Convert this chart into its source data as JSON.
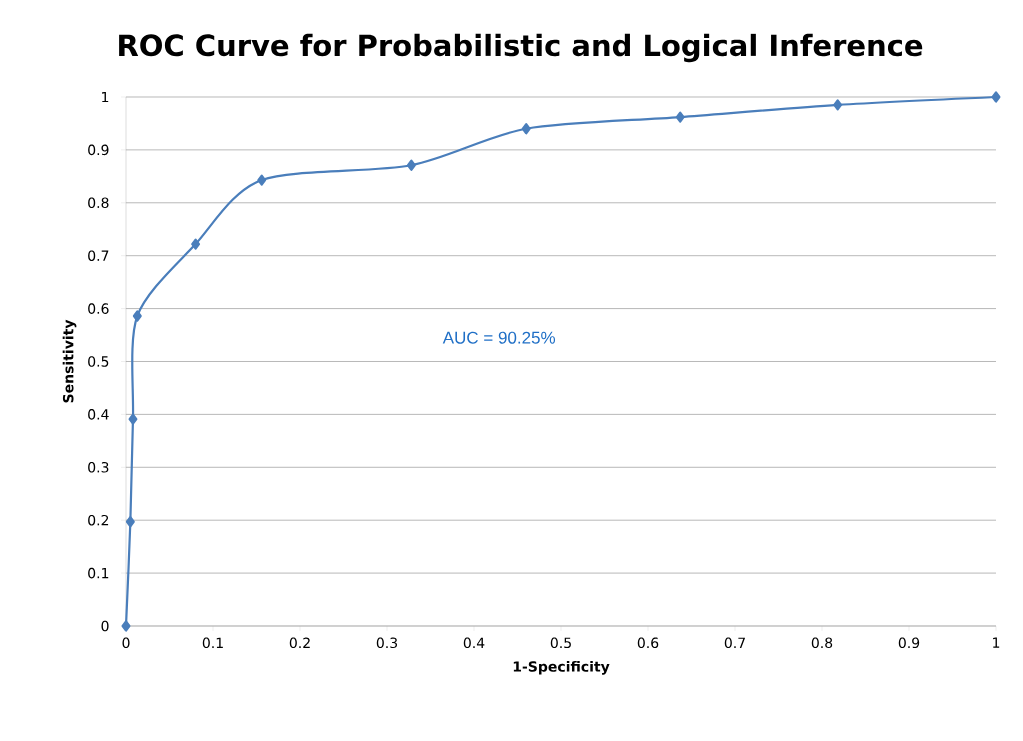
{
  "chart_data": {
    "type": "line",
    "title": "ROC Curve for Probabilistic and Logical Inference",
    "xlabel": "1-Specificity",
    "ylabel": "Sensitivity",
    "annotations": [
      "AUC = 90.25%"
    ],
    "series": [
      {
        "color": "#4a7ebb",
        "x": [
          0,
          0.005,
          0.008,
          0.013,
          0.08,
          0.156,
          0.328,
          0.46,
          0.637,
          0.818,
          1
        ],
        "values": [
          0,
          0.197,
          0.391,
          0.586,
          0.722,
          0.843,
          0.871,
          0.94,
          0.962,
          0.985,
          1
        ]
      }
    ],
    "xlim": [
      0,
      1
    ],
    "ylim": [
      0,
      1
    ],
    "xticks": [
      0,
      0.1,
      0.2,
      0.3,
      0.4,
      0.5,
      0.6,
      0.7,
      0.8,
      0.9,
      1
    ],
    "yticks": [
      0,
      0.1,
      0.2,
      0.3,
      0.4,
      0.5,
      0.6,
      0.7,
      0.8,
      0.9,
      1
    ],
    "grid": "y",
    "marker": "diamond",
    "line_style": "solid"
  }
}
